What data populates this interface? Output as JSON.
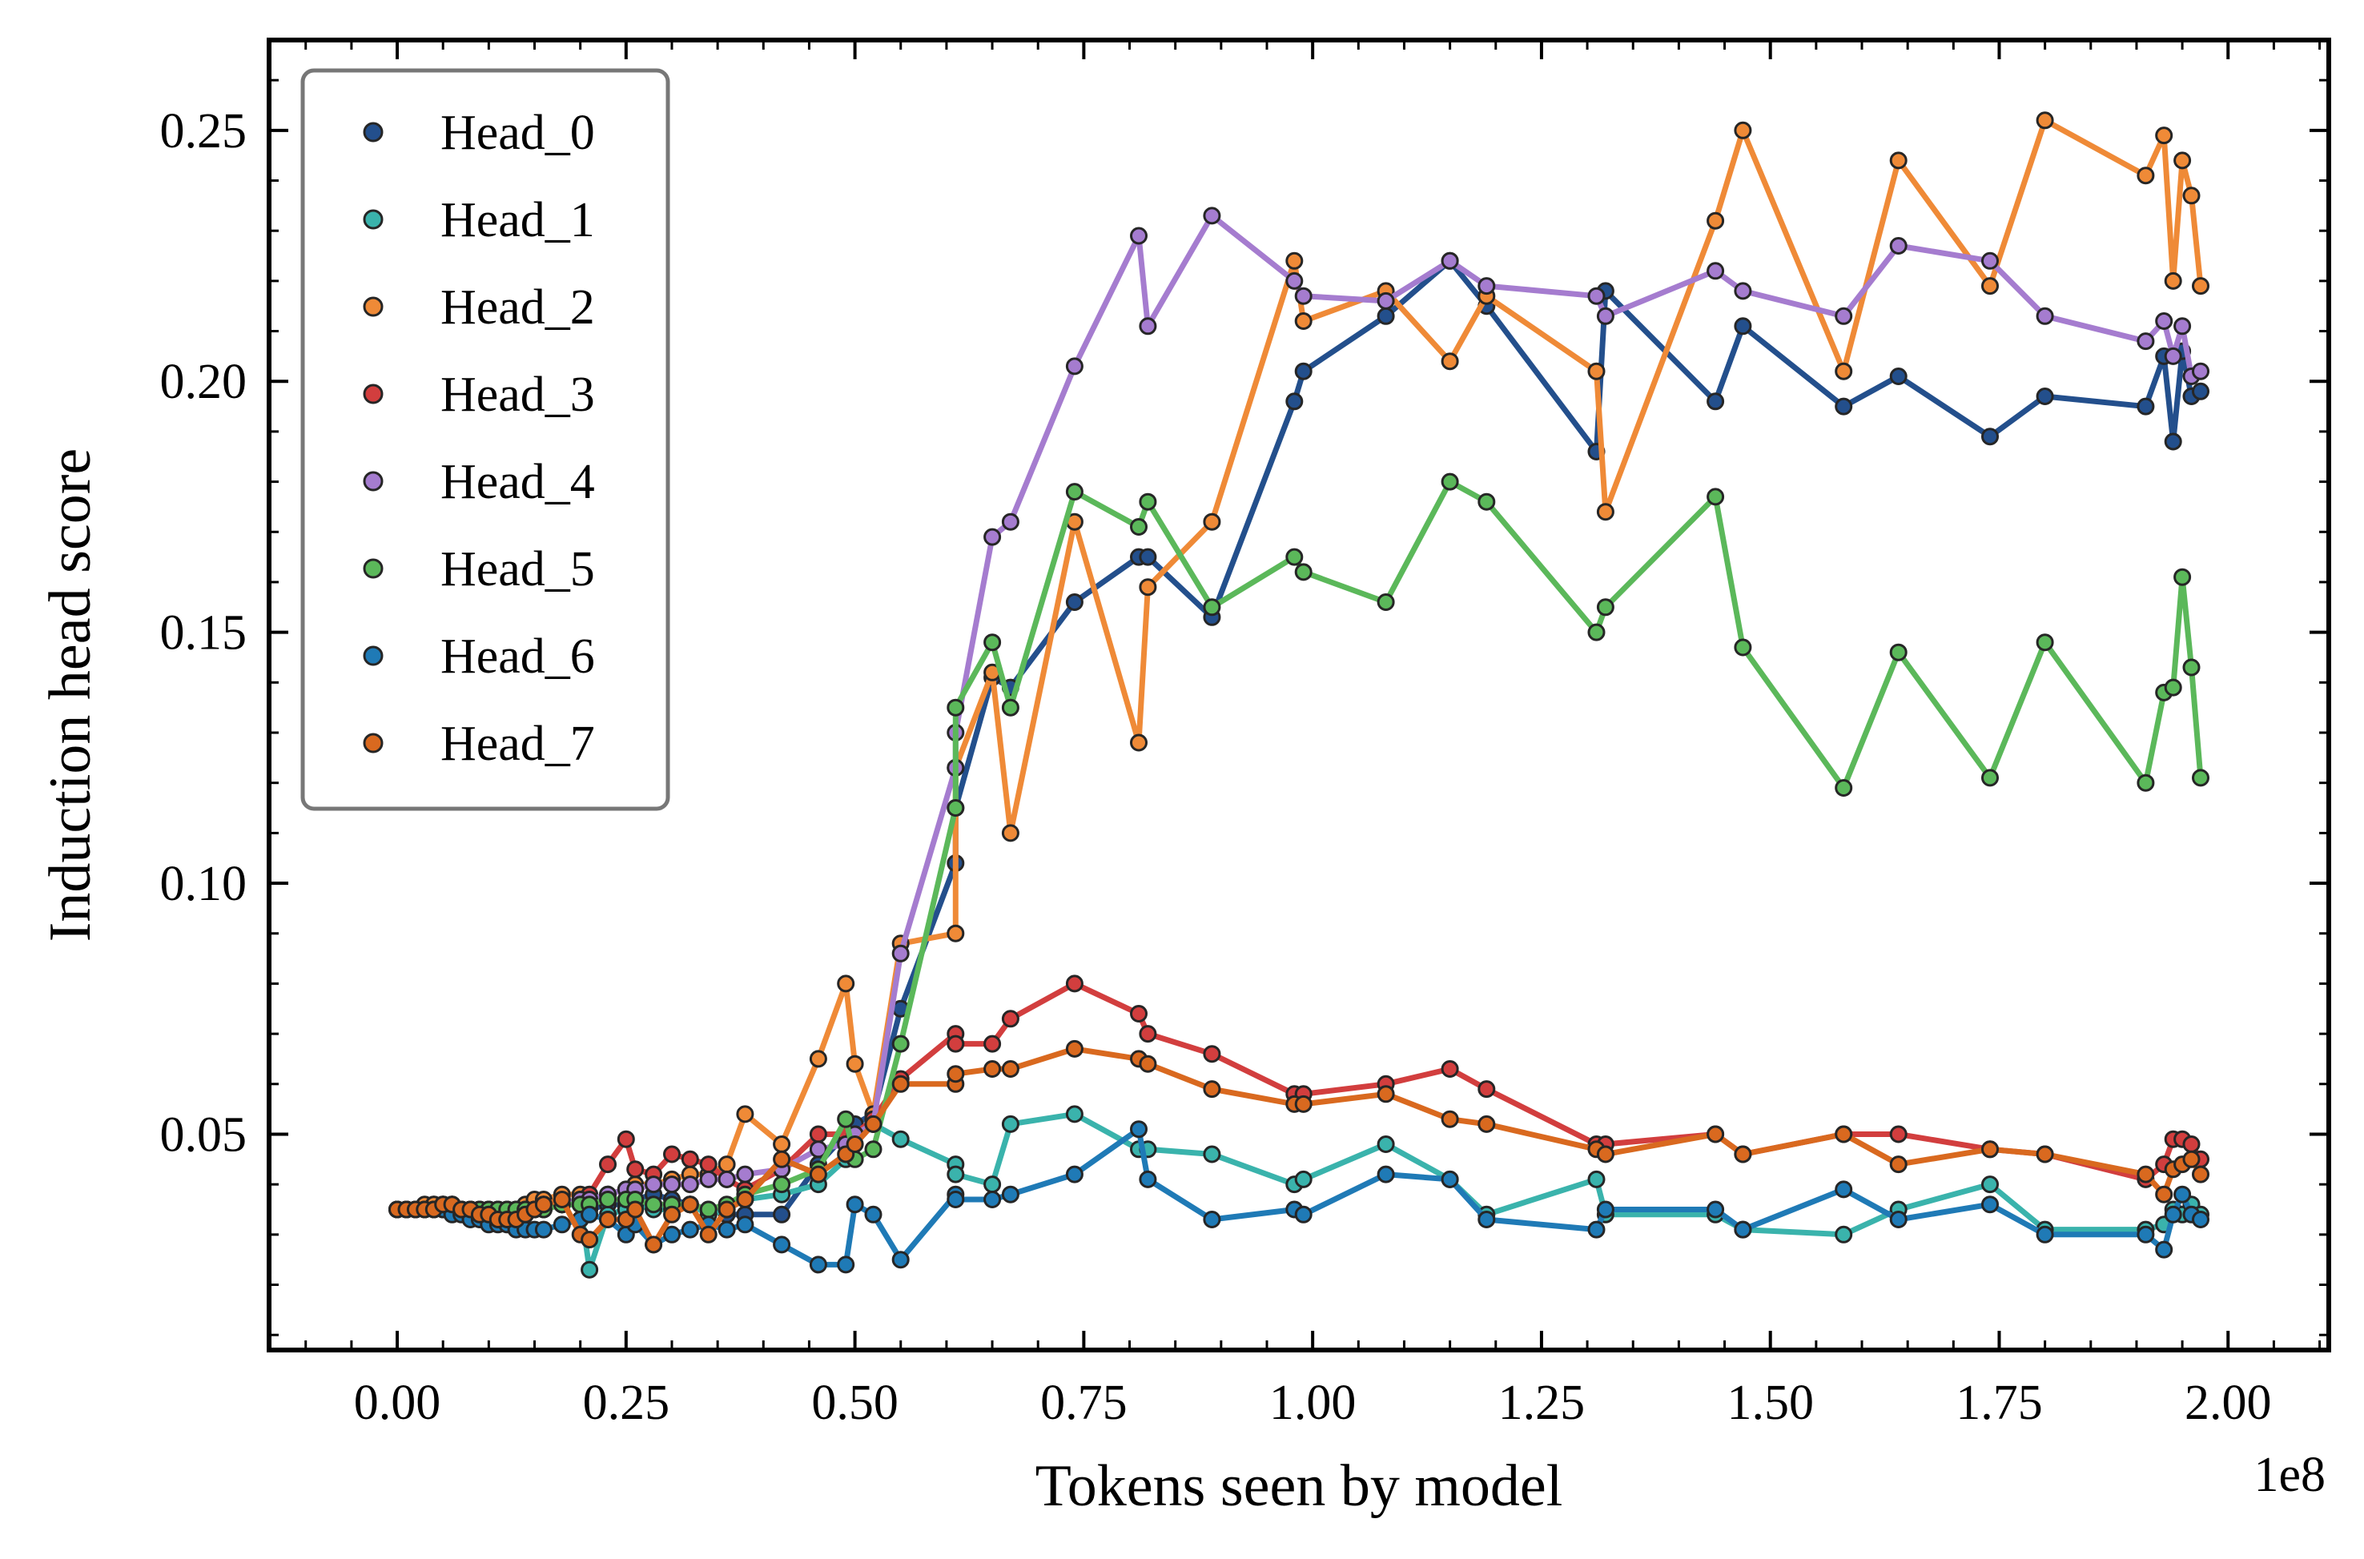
{
  "chart_data": {
    "type": "line",
    "xlabel": "Tokens seen by model",
    "ylabel": "Induction head score",
    "x_offset_label": "1e8",
    "x_scale_factor": 100000000.0,
    "xlim": [
      -0.14,
      2.11
    ],
    "ylim": [
      0.007,
      0.268
    ],
    "x_tick_labels": [
      "0.00",
      "0.25",
      "0.50",
      "0.75",
      "1.00",
      "1.25",
      "1.50",
      "1.75",
      "2.00"
    ],
    "x_tick_values": [
      0,
      0.25,
      0.5,
      0.75,
      1.0,
      1.25,
      1.5,
      1.75,
      2.0
    ],
    "y_tick_labels": [
      "0.05",
      "0.10",
      "0.15",
      "0.20",
      "0.25"
    ],
    "y_tick_values": [
      0.05,
      0.1,
      0.15,
      0.2,
      0.25
    ],
    "grid": false,
    "legend_position": "top-left",
    "x": [
      0.0,
      0.01,
      0.02,
      0.03,
      0.04,
      0.05,
      0.06,
      0.07,
      0.08,
      0.09,
      0.1,
      0.11,
      0.12,
      0.13,
      0.14,
      0.15,
      0.16,
      0.18,
      0.2,
      0.21,
      0.23,
      0.25,
      0.26,
      0.28,
      0.3,
      0.32,
      0.34,
      0.36,
      0.38,
      0.42,
      0.46,
      0.49,
      0.5,
      0.52,
      0.55,
      0.61,
      0.61,
      0.65,
      0.67,
      0.74,
      0.81,
      0.82,
      0.89,
      0.98,
      0.99,
      1.08,
      1.15,
      1.19,
      1.31,
      1.32,
      1.44,
      1.47,
      1.58,
      1.64,
      1.74,
      1.8,
      1.91,
      1.93,
      1.94,
      1.95,
      1.96,
      1.97
    ],
    "series": [
      {
        "name": "Head_0",
        "color": "#234f8c",
        "values": [
          0.035,
          0.035,
          0.035,
          0.035,
          0.036,
          0.036,
          0.036,
          0.035,
          0.035,
          0.034,
          0.034,
          0.034,
          0.034,
          0.035,
          0.035,
          0.035,
          0.036,
          0.037,
          0.036,
          0.035,
          0.036,
          0.036,
          0.037,
          0.038,
          0.037,
          0.036,
          0.035,
          0.034,
          0.034,
          0.034,
          0.044,
          0.05,
          0.052,
          0.054,
          0.075,
          0.104,
          0.115,
          0.141,
          0.139,
          0.156,
          0.165,
          0.165,
          0.153,
          0.196,
          0.202,
          0.213,
          0.224,
          0.215,
          0.186,
          0.218,
          0.196,
          0.211,
          0.195,
          0.201,
          0.189,
          0.197,
          0.195,
          0.205,
          0.188,
          0.206,
          0.197,
          0.198
        ]
      },
      {
        "name": "Head_1",
        "color": "#3ab3ac",
        "values": [
          0.035,
          0.035,
          0.035,
          0.035,
          0.035,
          0.035,
          0.035,
          0.035,
          0.034,
          0.034,
          0.034,
          0.034,
          0.034,
          0.034,
          0.034,
          0.035,
          0.035,
          0.036,
          0.036,
          0.023,
          0.034,
          0.035,
          0.036,
          0.035,
          0.035,
          0.036,
          0.034,
          0.035,
          0.037,
          0.038,
          0.04,
          0.045,
          0.05,
          0.052,
          0.049,
          0.044,
          0.042,
          0.04,
          0.052,
          0.054,
          0.047,
          0.047,
          0.046,
          0.04,
          0.041,
          0.048,
          0.041,
          0.034,
          0.041,
          0.034,
          0.034,
          0.031,
          0.03,
          0.035,
          0.04,
          0.031,
          0.031,
          0.032,
          0.035,
          0.034,
          0.036,
          0.034
        ]
      },
      {
        "name": "Head_2",
        "color": "#ef8a37",
        "values": [
          0.035,
          0.035,
          0.035,
          0.036,
          0.036,
          0.036,
          0.036,
          0.035,
          0.035,
          0.035,
          0.035,
          0.035,
          0.035,
          0.035,
          0.036,
          0.037,
          0.037,
          0.038,
          0.038,
          0.037,
          0.038,
          0.039,
          0.04,
          0.04,
          0.041,
          0.042,
          0.042,
          0.044,
          0.054,
          0.048,
          0.065,
          0.08,
          0.064,
          0.054,
          0.088,
          0.09,
          0.123,
          0.142,
          0.11,
          0.172,
          0.128,
          0.159,
          0.172,
          0.224,
          0.212,
          0.218,
          0.204,
          0.217,
          0.202,
          0.174,
          0.232,
          0.25,
          0.202,
          0.244,
          0.219,
          0.252,
          0.241,
          0.249,
          0.22,
          0.244,
          0.237,
          0.219
        ]
      },
      {
        "name": "Head_3",
        "color": "#d23e3e",
        "values": [
          0.035,
          0.035,
          0.035,
          0.035,
          0.035,
          0.035,
          0.035,
          0.035,
          0.034,
          0.034,
          0.034,
          0.034,
          0.034,
          0.034,
          0.034,
          0.035,
          0.035,
          0.036,
          0.037,
          0.038,
          0.044,
          0.049,
          0.043,
          0.042,
          0.046,
          0.045,
          0.044,
          0.041,
          0.039,
          0.043,
          0.05,
          0.05,
          0.05,
          0.053,
          0.061,
          0.07,
          0.068,
          0.068,
          0.073,
          0.08,
          0.074,
          0.07,
          0.066,
          0.058,
          0.058,
          0.06,
          0.063,
          0.059,
          0.048,
          0.048,
          0.05,
          0.046,
          0.05,
          0.05,
          0.047,
          0.046,
          0.041,
          0.044,
          0.049,
          0.049,
          0.048,
          0.045
        ]
      },
      {
        "name": "Head_4",
        "color": "#a57ccf",
        "values": [
          0.035,
          0.035,
          0.035,
          0.035,
          0.035,
          0.035,
          0.035,
          0.035,
          0.035,
          0.035,
          0.035,
          0.035,
          0.035,
          0.035,
          0.035,
          0.035,
          0.036,
          0.036,
          0.037,
          0.037,
          0.038,
          0.039,
          0.039,
          0.04,
          0.04,
          0.04,
          0.041,
          0.041,
          0.042,
          0.043,
          0.047,
          0.048,
          0.05,
          0.052,
          0.086,
          0.123,
          0.13,
          0.169,
          0.172,
          0.203,
          0.229,
          0.211,
          0.233,
          0.22,
          0.217,
          0.216,
          0.224,
          0.219,
          0.217,
          0.213,
          0.222,
          0.218,
          0.213,
          0.227,
          0.224,
          0.213,
          0.208,
          0.212,
          0.205,
          0.211,
          0.201,
          0.202
        ]
      },
      {
        "name": "Head_5",
        "color": "#5bb85a",
        "values": [
          0.035,
          0.035,
          0.035,
          0.035,
          0.035,
          0.035,
          0.035,
          0.035,
          0.035,
          0.035,
          0.035,
          0.035,
          0.035,
          0.035,
          0.035,
          0.035,
          0.035,
          0.036,
          0.036,
          0.036,
          0.037,
          0.037,
          0.037,
          0.036,
          0.036,
          0.036,
          0.035,
          0.036,
          0.038,
          0.04,
          0.043,
          0.053,
          0.045,
          0.047,
          0.068,
          0.115,
          0.135,
          0.148,
          0.135,
          0.178,
          0.171,
          0.176,
          0.155,
          0.165,
          0.162,
          0.156,
          0.18,
          0.176,
          0.15,
          0.155,
          0.177,
          0.147,
          0.119,
          0.146,
          0.121,
          0.148,
          0.12,
          0.138,
          0.139,
          0.161,
          0.143,
          0.121
        ]
      },
      {
        "name": "Head_6",
        "color": "#1f7ab6",
        "values": [
          0.035,
          0.035,
          0.035,
          0.035,
          0.035,
          0.035,
          0.034,
          0.034,
          0.033,
          0.033,
          0.032,
          0.032,
          0.032,
          0.031,
          0.031,
          0.031,
          0.031,
          0.032,
          0.033,
          0.034,
          0.033,
          0.03,
          0.032,
          0.028,
          0.03,
          0.031,
          0.032,
          0.031,
          0.032,
          0.028,
          0.024,
          0.024,
          0.036,
          0.034,
          0.025,
          0.038,
          0.037,
          0.037,
          0.038,
          0.042,
          0.051,
          0.041,
          0.033,
          0.035,
          0.034,
          0.042,
          0.041,
          0.033,
          0.031,
          0.035,
          0.035,
          0.031,
          0.039,
          0.033,
          0.036,
          0.03,
          0.03,
          0.027,
          0.034,
          0.038,
          0.034,
          0.033
        ]
      },
      {
        "name": "Head_7",
        "color": "#d9691f",
        "values": [
          0.035,
          0.035,
          0.035,
          0.035,
          0.035,
          0.036,
          0.036,
          0.035,
          0.035,
          0.034,
          0.034,
          0.033,
          0.033,
          0.033,
          0.034,
          0.035,
          0.036,
          0.037,
          0.03,
          0.029,
          0.033,
          0.033,
          0.035,
          0.028,
          0.034,
          0.036,
          0.03,
          0.035,
          0.037,
          0.045,
          0.042,
          0.046,
          0.048,
          0.052,
          0.06,
          0.06,
          0.062,
          0.063,
          0.063,
          0.067,
          0.065,
          0.064,
          0.059,
          0.056,
          0.056,
          0.058,
          0.053,
          0.052,
          0.047,
          0.046,
          0.05,
          0.046,
          0.05,
          0.044,
          0.047,
          0.046,
          0.042,
          0.038,
          0.043,
          0.044,
          0.045,
          0.042
        ]
      }
    ]
  }
}
